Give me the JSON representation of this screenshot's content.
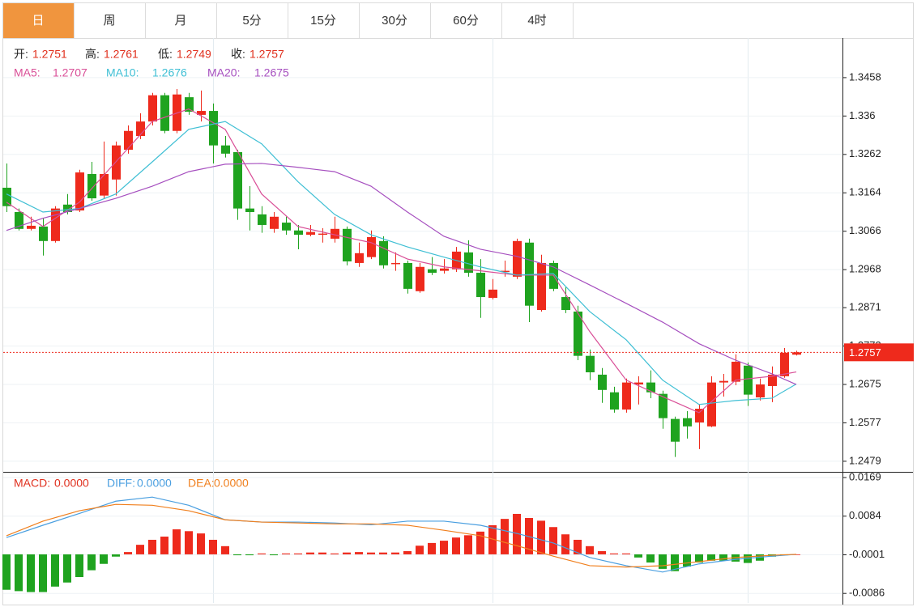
{
  "tabs": {
    "items": [
      "日",
      "周",
      "月",
      "5分",
      "15分",
      "30分",
      "60分",
      "4时"
    ],
    "active": 0,
    "active_color": "#f0953e"
  },
  "chart_data": [
    {
      "type": "candlestick",
      "ohlc_labels": [
        "开:",
        "高:",
        "低:",
        "收:"
      ],
      "open": [
        1.3177,
        1.3115,
        1.3072,
        1.3078,
        1.3041,
        1.3134,
        1.3119,
        1.3212,
        1.3157,
        1.3198,
        1.3274,
        1.3309,
        1.3346,
        1.3413,
        1.3322,
        1.3408,
        1.3363,
        1.3373,
        1.3285,
        1.3268,
        1.3124,
        1.3109,
        1.3072,
        1.3088,
        1.3068,
        1.3057,
        1.3057,
        1.3047,
        1.3072,
        1.2985,
        1.3,
        1.3041,
        1.2983,
        1.2985,
        1.2913,
        1.2969,
        1.2965,
        1.2969,
        1.3012,
        1.296,
        1.2896,
        1.2962,
        1.295,
        1.3037,
        1.2865,
        1.2985,
        1.2898,
        1.2861,
        1.2748,
        1.27,
        1.2655,
        1.2611,
        1.2675,
        1.268,
        1.2651,
        1.2587,
        1.2589,
        1.2578,
        1.2568,
        1.268,
        1.2682,
        1.2723,
        1.2642,
        1.2671,
        1.2696,
        1.2751
      ],
      "high": [
        1.3239,
        1.3124,
        1.3103,
        1.3099,
        1.313,
        1.3161,
        1.3223,
        1.3243,
        1.3295,
        1.3295,
        1.3336,
        1.3367,
        1.3419,
        1.3419,
        1.3429,
        1.3419,
        1.3425,
        1.3392,
        1.3309,
        1.3274,
        1.3181,
        1.313,
        1.3115,
        1.3103,
        1.3082,
        1.3082,
        1.3074,
        1.3103,
        1.3078,
        1.3037,
        1.3068,
        1.3053,
        1.3012,
        1.2991,
        1.2985,
        1.3,
        1.2995,
        1.3026,
        1.3043,
        1.2995,
        1.2944,
        1.2991,
        1.3047,
        1.3047,
        1.3006,
        1.2991,
        1.2923,
        1.2876,
        1.2764,
        1.2717,
        1.2669,
        1.269,
        1.2696,
        1.2711,
        1.2659,
        1.2593,
        1.2607,
        1.2624,
        1.2696,
        1.2702,
        1.2752,
        1.2731,
        1.269,
        1.2721,
        1.2768,
        1.2761
      ],
      "low": [
        1.3115,
        1.3068,
        1.3068,
        1.3004,
        1.3037,
        1.3109,
        1.3115,
        1.3144,
        1.315,
        1.3157,
        1.3264,
        1.3301,
        1.3336,
        1.3316,
        1.3316,
        1.3363,
        1.3346,
        1.3239,
        1.3254,
        1.3095,
        1.3068,
        1.3062,
        1.3062,
        1.3057,
        1.302,
        1.3053,
        1.3037,
        1.3037,
        1.2979,
        1.2975,
        1.2995,
        1.2971,
        1.2965,
        1.2907,
        1.2909,
        1.2954,
        1.2958,
        1.2962,
        1.295,
        1.2845,
        1.2892,
        1.295,
        1.2944,
        1.2834,
        1.2861,
        1.2913,
        1.2857,
        1.2737,
        1.2686,
        1.2628,
        1.2603,
        1.2603,
        1.2624,
        1.264,
        1.2562,
        1.249,
        1.2537,
        1.251,
        1.2566,
        1.2644,
        1.2673,
        1.262,
        1.2634,
        1.263,
        1.2692,
        1.2749
      ],
      "close": [
        1.313,
        1.3072,
        1.308,
        1.3041,
        1.3124,
        1.3115,
        1.3216,
        1.315,
        1.3212,
        1.3285,
        1.3322,
        1.3346,
        1.3413,
        1.3322,
        1.3415,
        1.3371,
        1.3373,
        1.3285,
        1.3264,
        1.3124,
        1.3115,
        1.3082,
        1.3103,
        1.3068,
        1.3057,
        1.3064,
        1.306,
        1.3072,
        1.2989,
        1.301,
        1.3051,
        1.2979,
        1.2985,
        1.2919,
        1.2975,
        1.296,
        1.2971,
        1.3014,
        1.296,
        1.2898,
        1.2917,
        1.2965,
        1.3041,
        1.2876,
        1.2985,
        1.2919,
        1.2865,
        1.2748,
        1.2706,
        1.2661,
        1.2611,
        1.268,
        1.268,
        1.2655,
        1.2589,
        1.2529,
        1.2568,
        1.2613,
        1.268,
        1.2684,
        1.2733,
        1.2649,
        1.2675,
        1.27,
        1.2756,
        1.2757
      ],
      "up_color": "#ee2a1c",
      "down_color": "#1fa31f",
      "value_color": "#e0301e",
      "series": [
        {
          "name": "MA5:",
          "color": "#d94f97",
          "x": [
            0,
            3,
            6,
            9,
            12,
            15,
            18,
            21,
            24,
            27,
            30,
            33,
            36,
            39,
            42,
            45,
            48,
            51,
            54,
            57,
            60,
            63,
            65
          ],
          "values": [
            1.314,
            1.3078,
            1.314,
            1.3243,
            1.3346,
            1.3378,
            1.3326,
            1.3161,
            1.3078,
            1.3057,
            1.3037,
            1.2995,
            1.2975,
            1.2965,
            1.2954,
            1.2954,
            1.281,
            1.2686,
            1.2644,
            1.2603,
            1.2686,
            1.2696,
            1.2707
          ]
        },
        {
          "name": "MA10:",
          "color": "#3fbfd4",
          "x": [
            0,
            3,
            6,
            9,
            12,
            15,
            18,
            21,
            24,
            27,
            30,
            33,
            36,
            39,
            42,
            45,
            48,
            51,
            54,
            57,
            60,
            63,
            65
          ],
          "values": [
            1.3161,
            1.3115,
            1.3124,
            1.3161,
            1.3243,
            1.3326,
            1.3346,
            1.3289,
            1.3192,
            1.3109,
            1.3057,
            1.3026,
            1.3,
            1.2975,
            1.2954,
            1.2958,
            1.2861,
            1.2789,
            1.2686,
            1.2624,
            1.2634,
            1.264,
            1.2676
          ]
        },
        {
          "name": "MA20:",
          "color": "#a64fbf",
          "x": [
            0,
            3,
            6,
            9,
            12,
            15,
            18,
            21,
            24,
            27,
            30,
            33,
            36,
            39,
            42,
            45,
            48,
            51,
            54,
            57,
            60,
            63,
            65
          ],
          "values": [
            1.3068,
            1.3099,
            1.3124,
            1.315,
            1.3181,
            1.3218,
            1.3237,
            1.3239,
            1.3229,
            1.3218,
            1.3181,
            1.3115,
            1.3053,
            1.302,
            1.3002,
            1.2975,
            1.2929,
            1.2882,
            1.2834,
            1.2779,
            1.2737,
            1.2702,
            1.2675
          ]
        }
      ],
      "ylim": [
        1.2452,
        1.3559
      ],
      "yticks": [
        1.3458,
        1.336,
        1.3262,
        1.3164,
        1.3066,
        1.2968,
        1.2871,
        1.2773,
        1.2675,
        1.2577,
        1.2479
      ],
      "grid": true,
      "xgrid": [
        17,
        40,
        61
      ]
    },
    {
      "type": "macd",
      "histogram": {
        "name": "MACD:",
        "color": "#e0301e",
        "values": [
          -0.0078,
          -0.0081,
          -0.0083,
          -0.0083,
          -0.0071,
          -0.0062,
          -0.005,
          -0.0035,
          -0.0021,
          -0.0005,
          0.0005,
          0.0021,
          0.0032,
          0.0039,
          0.0055,
          0.0051,
          0.0046,
          0.0032,
          0.0018,
          -0.0002,
          -0.0002,
          0.0002,
          -0.0002,
          0.0002,
          0.0002,
          0.0004,
          0.0004,
          0.0002,
          0.0004,
          0.0005,
          0.0004,
          0.0004,
          0.0004,
          0.0007,
          0.0019,
          0.0025,
          0.003,
          0.0037,
          0.0042,
          0.005,
          0.0064,
          0.0078,
          0.0089,
          0.008,
          0.0074,
          0.006,
          0.0044,
          0.0032,
          0.0018,
          0.0007,
          0.0002,
          0.0002,
          -0.0007,
          -0.0018,
          -0.0032,
          -0.0037,
          -0.0027,
          -0.0018,
          -0.0014,
          -0.0014,
          -0.0016,
          -0.0019,
          -0.0014,
          -0.0005,
          -0.0002,
          0
        ],
        "value_labels": [
          null,
          null,
          null,
          null,
          null,
          null,
          null,
          null,
          null,
          null,
          null,
          null,
          null,
          null,
          null,
          null,
          null,
          null,
          null,
          null,
          null,
          null,
          null,
          null,
          null,
          null,
          null,
          null,
          null,
          null,
          null,
          null,
          null,
          null,
          null,
          null,
          null,
          null,
          null,
          null,
          null,
          null,
          null,
          null,
          null,
          null,
          null,
          null,
          null,
          null,
          null,
          null,
          null,
          null,
          null,
          null,
          null,
          null,
          null,
          null,
          null,
          null,
          null,
          null,
          null,
          "0.0000"
        ]
      },
      "up_color": "#ee2a1c",
      "down_color": "#1fa31f",
      "series": [
        {
          "name": "DIFF:",
          "color": "#4a9fe0",
          "x": [
            0,
            3,
            6,
            9,
            12,
            15,
            18,
            21,
            24,
            27,
            30,
            33,
            36,
            39,
            42,
            45,
            48,
            51,
            54,
            57,
            60,
            63,
            65
          ],
          "values": [
            0.0037,
            0.0064,
            0.009,
            0.0117,
            0.0126,
            0.0108,
            0.0076,
            0.0071,
            0.0071,
            0.0069,
            0.0065,
            0.0073,
            0.0073,
            0.0064,
            0.0046,
            0.0025,
            -0.0007,
            -0.0025,
            -0.0039,
            -0.0021,
            -0.0011,
            -0.0004,
            0
          ],
          "value_labels": [
            null,
            null,
            null,
            null,
            null,
            null,
            null,
            null,
            null,
            null,
            null,
            null,
            null,
            null,
            null,
            null,
            null,
            null,
            null,
            null,
            null,
            null,
            "0.0000"
          ]
        },
        {
          "name": "DEA:",
          "color": "#f07f1d",
          "x": [
            0,
            3,
            6,
            9,
            12,
            15,
            18,
            21,
            24,
            27,
            30,
            33,
            36,
            39,
            42,
            45,
            48,
            51,
            54,
            57,
            60,
            63,
            65
          ],
          "values": [
            0.0041,
            0.0073,
            0.0096,
            0.011,
            0.0108,
            0.0096,
            0.0076,
            0.0071,
            0.0069,
            0.0067,
            0.0067,
            0.0064,
            0.0053,
            0.0041,
            0.0019,
            -0.0004,
            -0.0025,
            -0.0028,
            -0.0025,
            -0.0016,
            -0.0007,
            -0.0002,
            0
          ],
          "value_labels": [
            null,
            null,
            null,
            null,
            null,
            null,
            null,
            null,
            null,
            null,
            null,
            null,
            null,
            null,
            null,
            null,
            null,
            null,
            null,
            null,
            null,
            null,
            "0.0000"
          ]
        }
      ],
      "ylim": [
        -0.0107,
        0.0178
      ],
      "yticks": [
        0.0169,
        0.0084,
        -0.0001,
        -0.0086
      ],
      "grid": true
    }
  ]
}
